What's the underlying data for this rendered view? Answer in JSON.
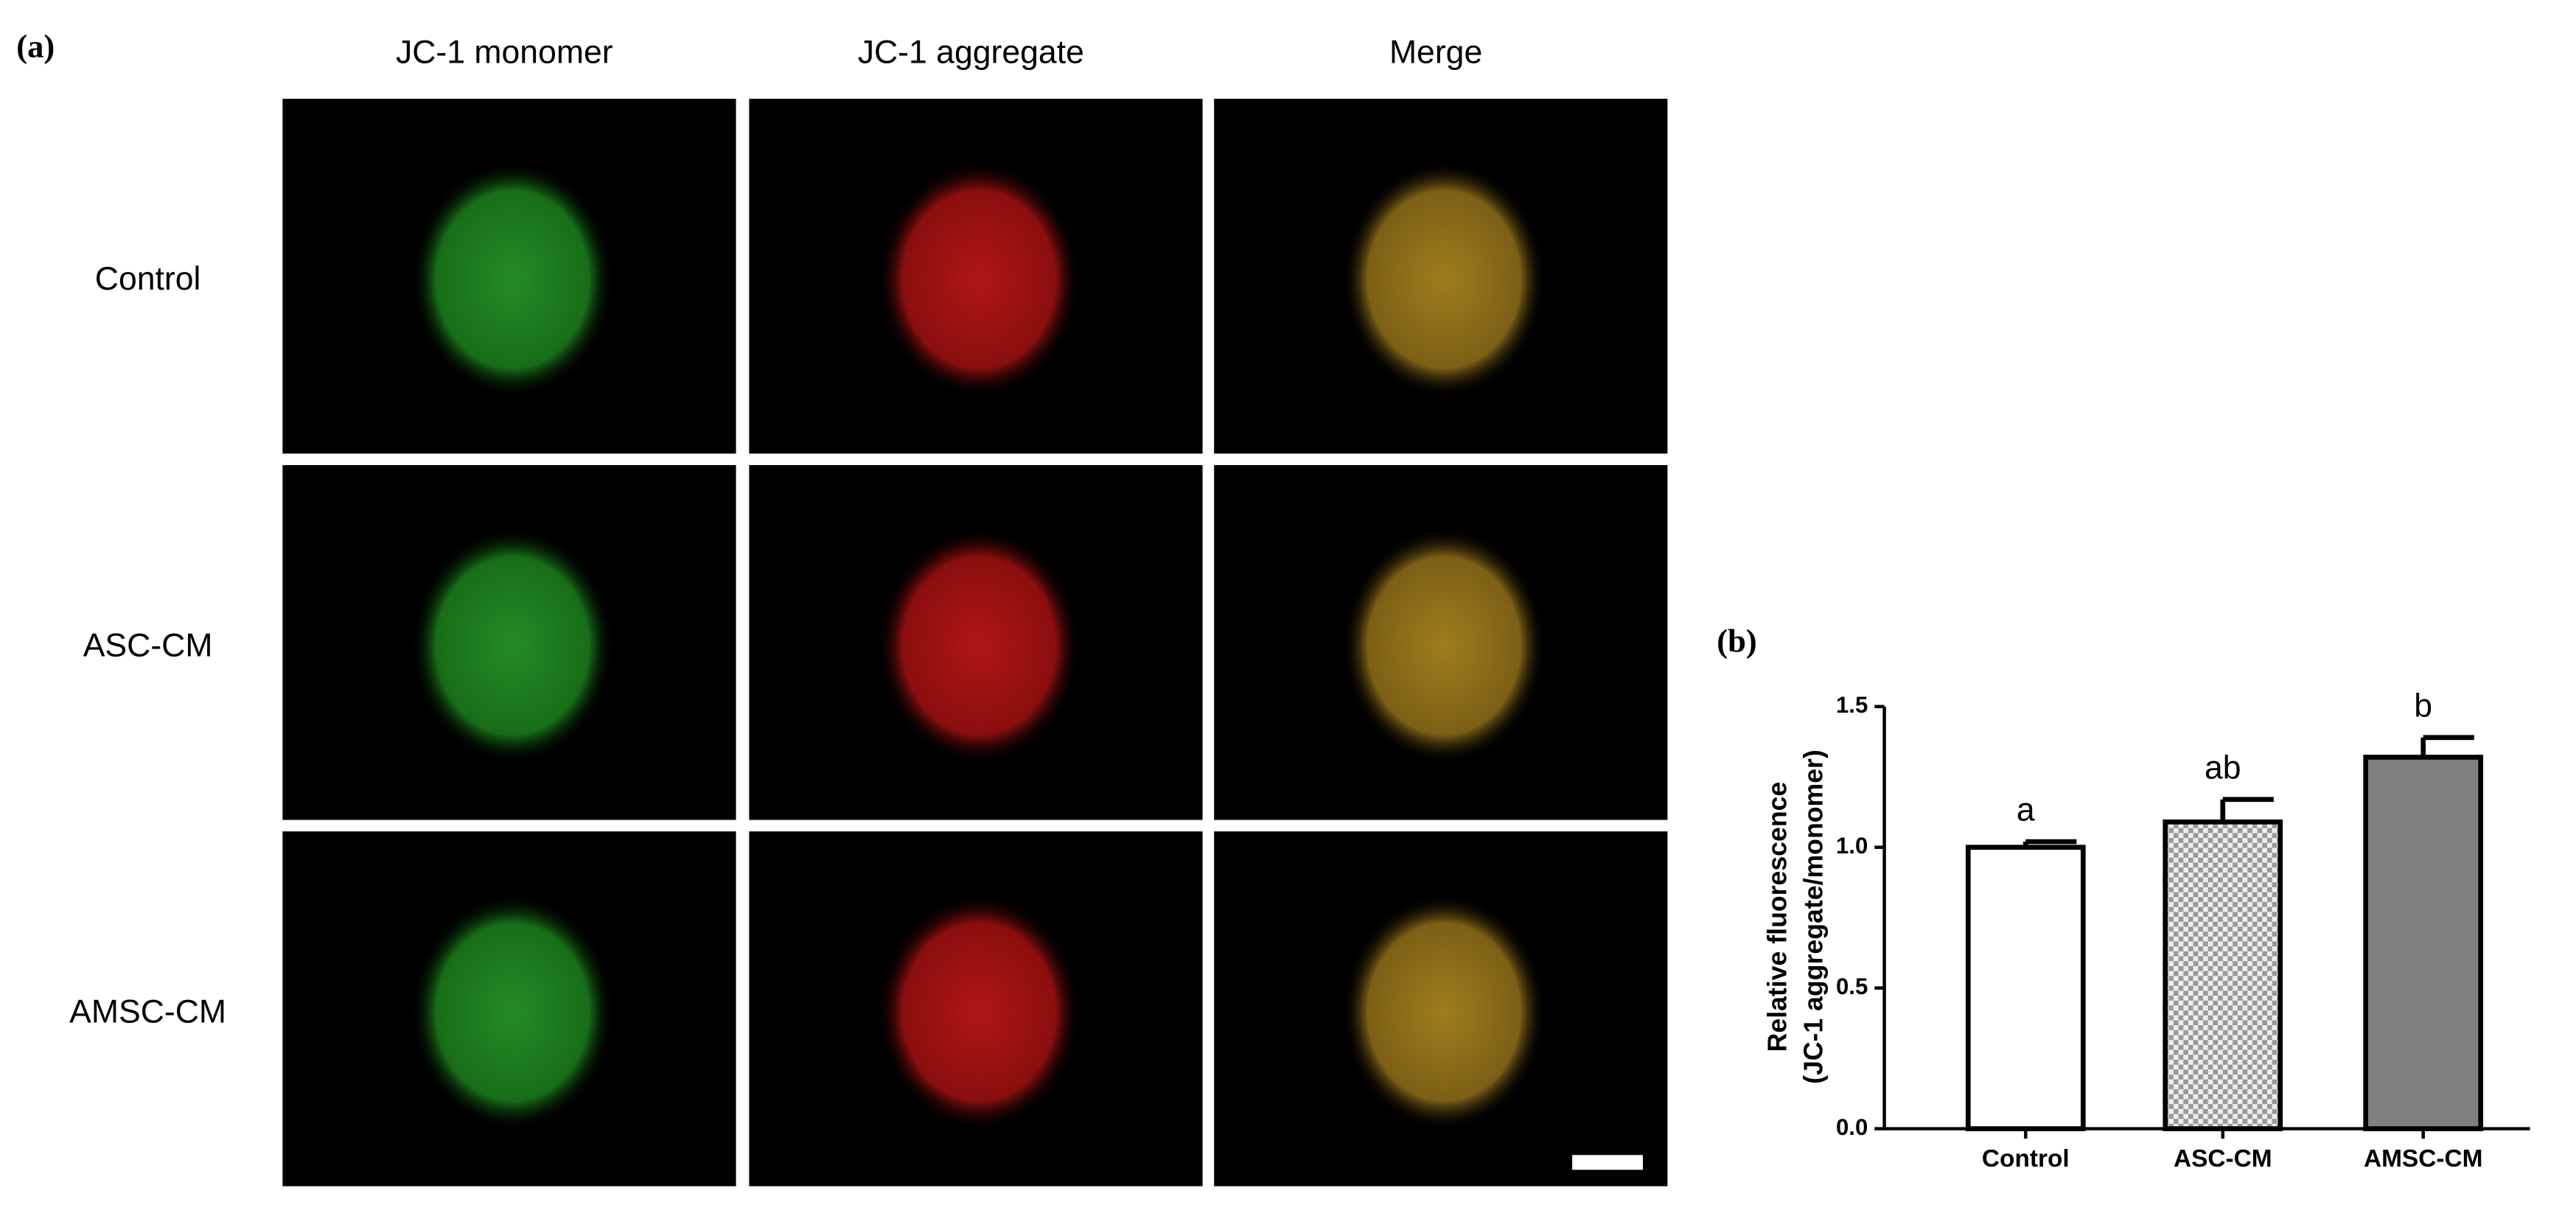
{
  "panel_a": {
    "label": "(a)",
    "columns": [
      "JC-1 monomer",
      "JC-1 aggregate",
      "Merge"
    ],
    "rows": [
      "Control",
      "ASC-CM",
      "AMSC-CM"
    ]
  },
  "chart_data": {
    "type": "bar",
    "panel_label": "(b)",
    "y_label": [
      "Relative fluorescence",
      "(JC-1 aggregate/monomer)"
    ],
    "categories": [
      "Control",
      "ASC-CM",
      "AMSC-CM"
    ],
    "values": [
      1.0,
      1.09,
      1.32
    ],
    "errors": [
      0.02,
      0.08,
      0.07
    ],
    "annotations": [
      "a",
      "ab",
      "b"
    ],
    "colors": [
      "#ffffff",
      "#c8c8c8",
      "#808080"
    ],
    "hatch": [
      false,
      true,
      false
    ],
    "ylim": [
      0,
      1.5
    ],
    "yticks": [
      {
        "value": 0,
        "label": "0.0"
      },
      {
        "value": 0.5,
        "label": "0.5"
      },
      {
        "value": 1,
        "label": "1.0"
      },
      {
        "value": 1.5,
        "label": "1.5"
      }
    ]
  }
}
